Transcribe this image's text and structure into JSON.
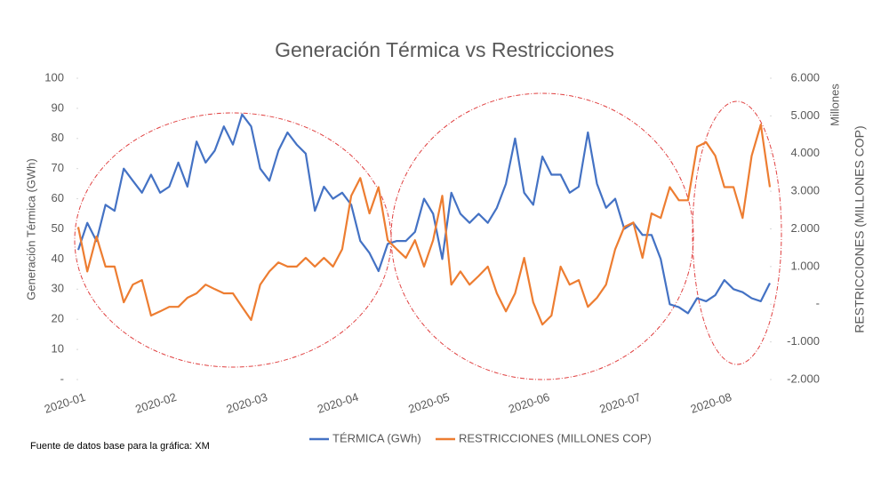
{
  "chart_data": {
    "type": "line",
    "title": "Generación Térmica vs Restricciones",
    "y_label": "Generación Térmica (GWh)",
    "y2_label": "RESTRICCIONES (MILLONES COP)",
    "y2_unit": "Millones",
    "source": "Fuente de datos base para la gráfica: XM",
    "categories": [
      "2020-01",
      null,
      null,
      null,
      null,
      null,
      null,
      null,
      null,
      null,
      "2020-02",
      null,
      null,
      null,
      null,
      null,
      null,
      null,
      null,
      null,
      "2020-03",
      null,
      null,
      null,
      null,
      null,
      null,
      null,
      null,
      null,
      "2020-04",
      null,
      null,
      null,
      null,
      null,
      null,
      null,
      null,
      null,
      "2020-05",
      null,
      null,
      null,
      null,
      null,
      null,
      null,
      null,
      null,
      null,
      "2020-06",
      null,
      null,
      null,
      null,
      null,
      null,
      null,
      null,
      null,
      "2020-07",
      null,
      null,
      null,
      null,
      null,
      null,
      null,
      null,
      null,
      "2020-08",
      null,
      null,
      null,
      null,
      null
    ],
    "series": [
      {
        "name": "TÉRMICA (GWh)",
        "color": "#4472c4",
        "axis": "y",
        "values": [
          43,
          52,
          46,
          58,
          56,
          70,
          66,
          62,
          68,
          62,
          64,
          72,
          64,
          79,
          72,
          76,
          84,
          78,
          88,
          84,
          70,
          66,
          76,
          82,
          78,
          75,
          56,
          64,
          60,
          62,
          58,
          46,
          42,
          36,
          45,
          46,
          46,
          49,
          60,
          55,
          40,
          62,
          55,
          52,
          55,
          52,
          57,
          65,
          80,
          62,
          58,
          74,
          68,
          68,
          62,
          64,
          82,
          65,
          57,
          60,
          50,
          52,
          48,
          48,
          40,
          25,
          24,
          22,
          27,
          26,
          28,
          33,
          30,
          29,
          27,
          26,
          32
        ]
      },
      {
        "name": "RESTRICCIONES (MILLONES COP)",
        "color": "#ed7d31",
        "axis": "y2",
        "values": [
          2050,
          870,
          1800,
          1000,
          1000,
          50,
          520,
          640,
          -300,
          -190,
          -70,
          -70,
          170,
          290,
          520,
          400,
          290,
          290,
          -70,
          -420,
          520,
          870,
          1110,
          1000,
          1000,
          1230,
          1000,
          1230,
          1000,
          1460,
          2880,
          3350,
          2410,
          3110,
          1700,
          1460,
          1230,
          1700,
          1000,
          1700,
          2880,
          520,
          870,
          520,
          750,
          1000,
          290,
          -190,
          290,
          1230,
          50,
          -540,
          -300,
          1000,
          520,
          640,
          -70,
          170,
          520,
          1460,
          2050,
          2170,
          1230,
          2410,
          2290,
          3110,
          2760,
          2760,
          4180,
          4300,
          3940,
          3110,
          3110,
          2290,
          3940,
          4770,
          3110
        ]
      }
    ],
    "ylim": [
      0,
      100
    ],
    "yticks": [
      {
        "value": 0,
        "label": "-"
      },
      10,
      20,
      30,
      40,
      50,
      60,
      70,
      80,
      90,
      100
    ],
    "y2lim": [
      -2000,
      6000
    ],
    "y2ticks": [
      {
        "value": -2000,
        "label": "-2.000"
      },
      {
        "value": -1000,
        "label": "-1.000"
      },
      {
        "value": 0,
        "label": "-"
      },
      {
        "value": 1000,
        "label": "1.000"
      },
      {
        "value": 2000,
        "label": "2.000"
      },
      {
        "value": 3000,
        "label": "3.000"
      },
      {
        "value": 4000,
        "label": "4.000"
      },
      {
        "value": 5000,
        "label": "5.000"
      },
      {
        "value": 6000,
        "label": "6.000"
      }
    ],
    "grid": false,
    "legend": "bottom"
  }
}
